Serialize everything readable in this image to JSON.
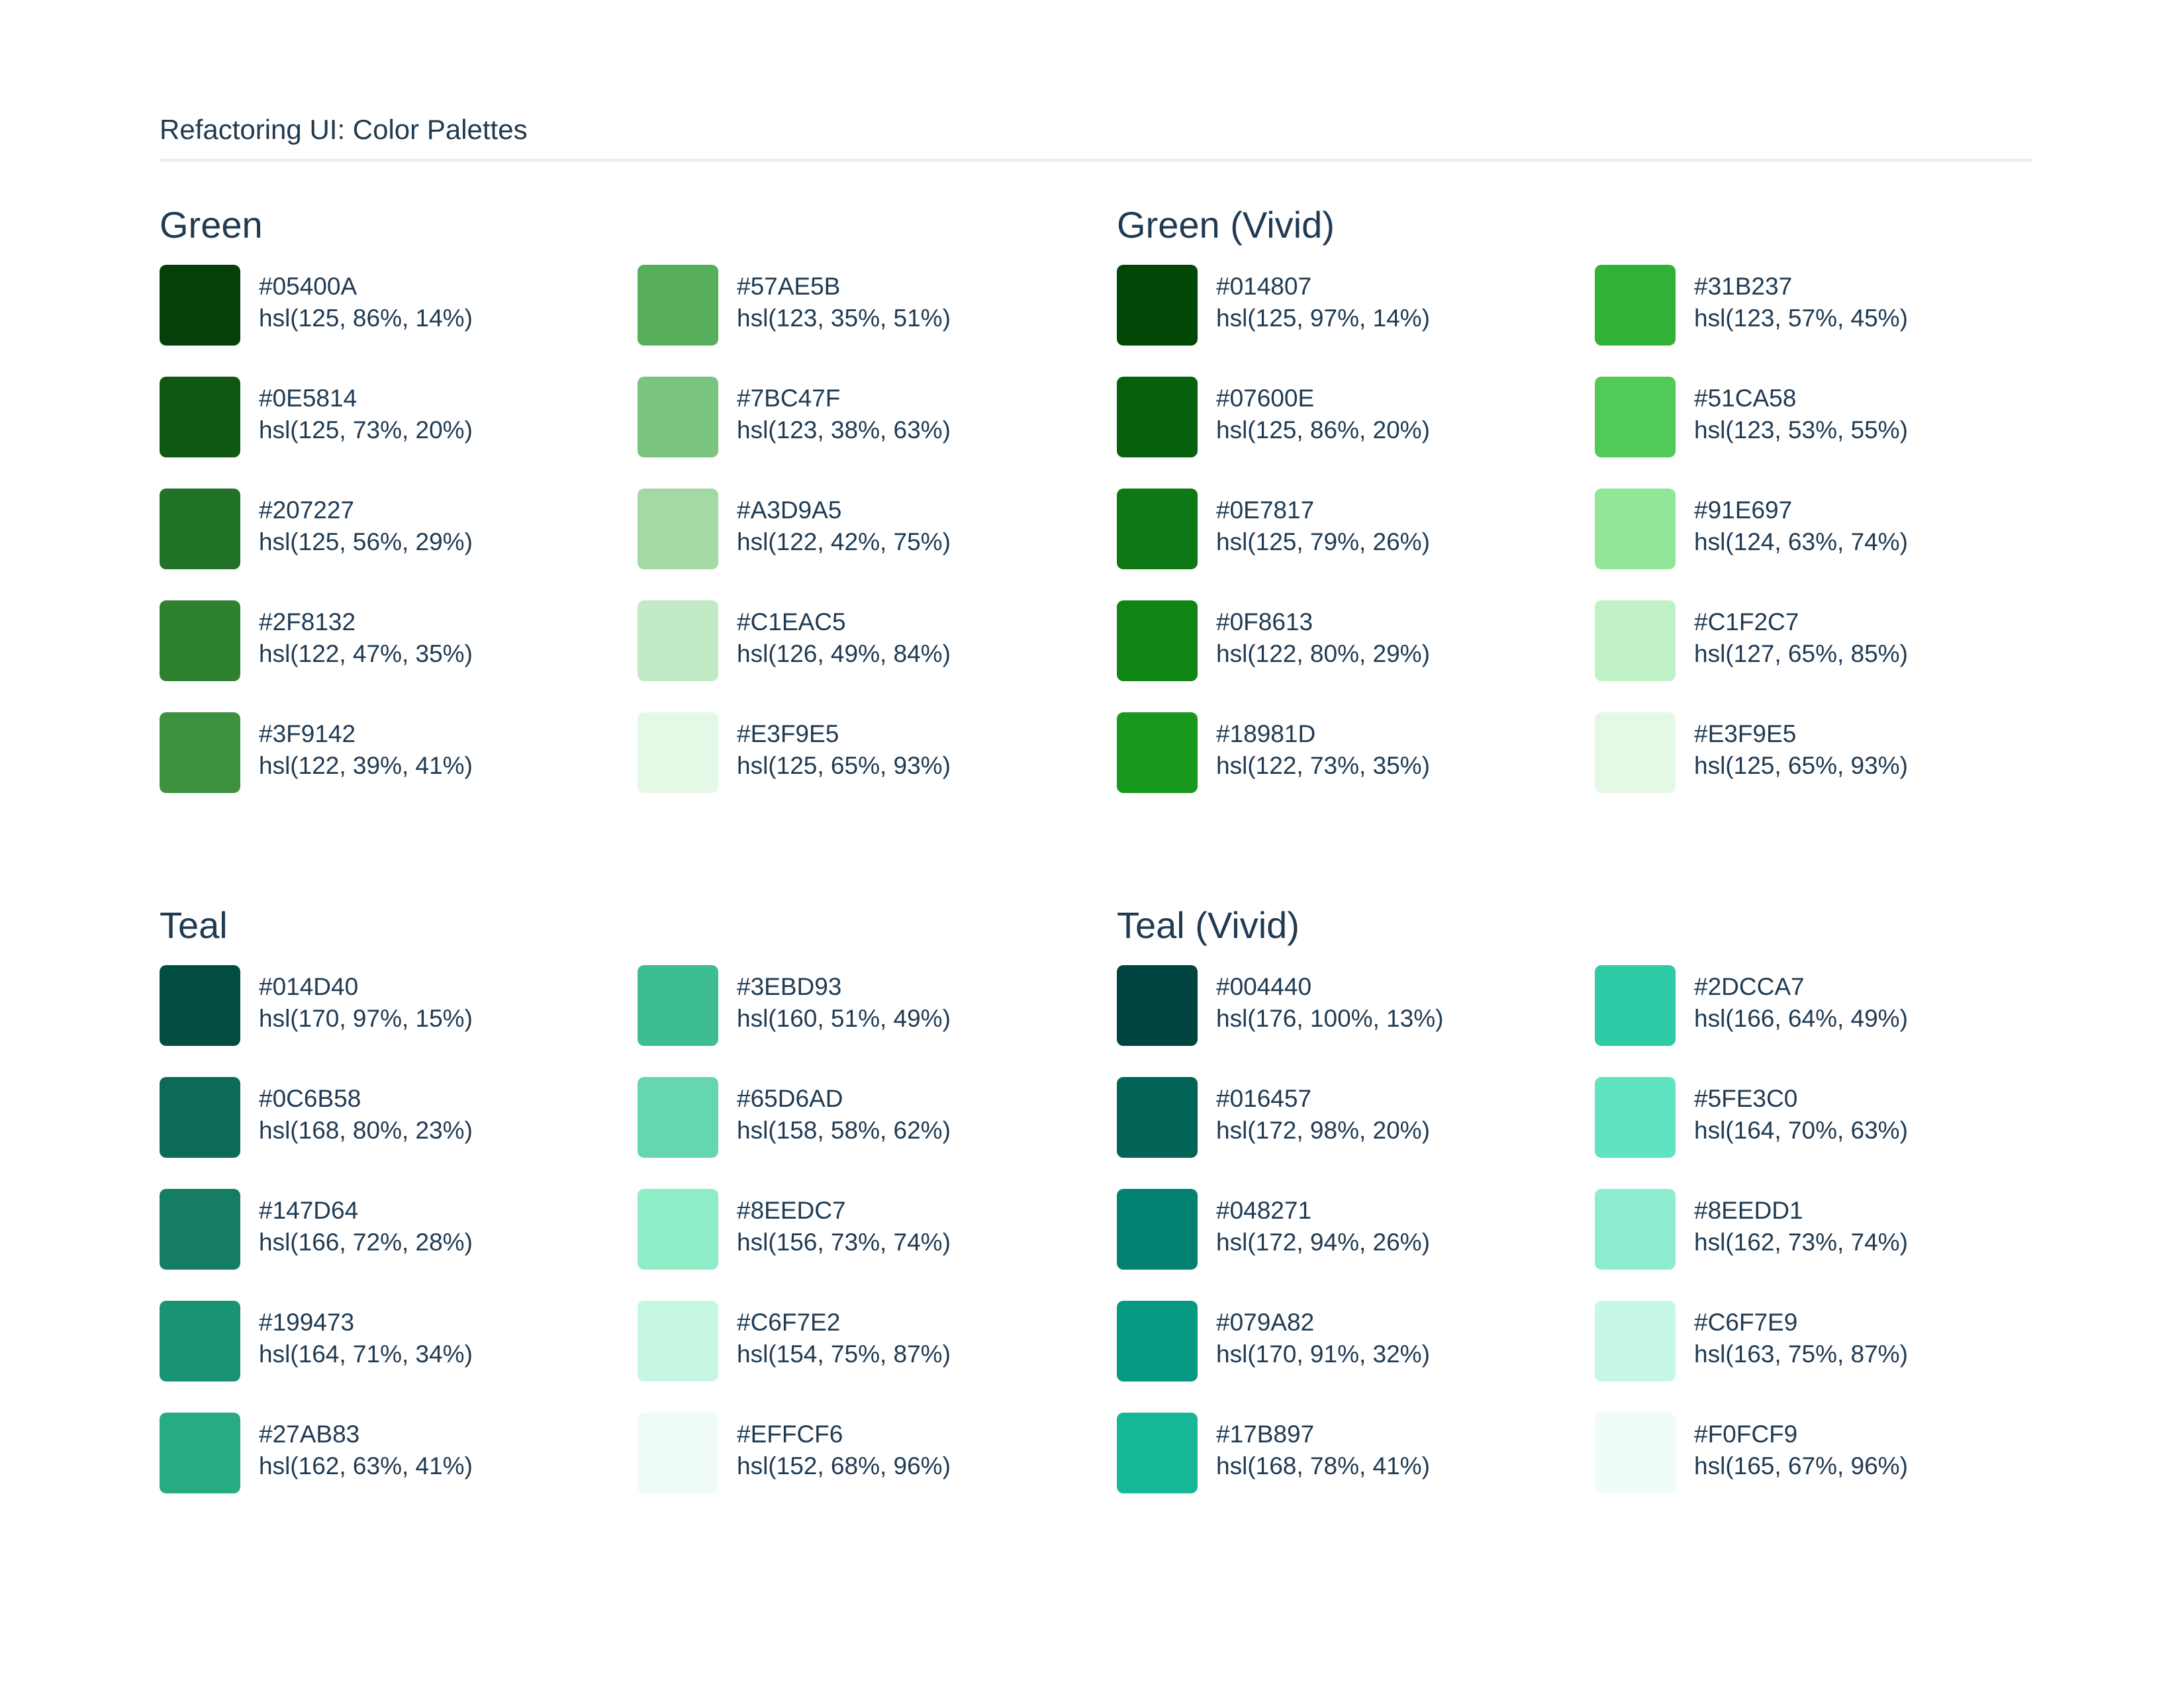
{
  "header": {
    "title": "Refactoring UI: Color Palettes"
  },
  "palettes": [
    {
      "name": "Green",
      "swatches": [
        {
          "hex": "#05400A",
          "hsl": "hsl(125, 86%, 14%)",
          "color": "#05400A"
        },
        {
          "hex": "#0E5814",
          "hsl": "hsl(125, 73%, 20%)",
          "color": "#0E5814"
        },
        {
          "hex": "#207227",
          "hsl": "hsl(125, 56%, 29%)",
          "color": "#207227"
        },
        {
          "hex": "#2F8132",
          "hsl": "hsl(122, 47%, 35%)",
          "color": "#2F8132"
        },
        {
          "hex": "#3F9142",
          "hsl": "hsl(122, 39%, 41%)",
          "color": "#3F9142"
        },
        {
          "hex": "#57AE5B",
          "hsl": "hsl(123, 35%, 51%)",
          "color": "#57AE5B"
        },
        {
          "hex": "#7BC47F",
          "hsl": "hsl(123, 38%, 63%)",
          "color": "#7BC47F"
        },
        {
          "hex": "#A3D9A5",
          "hsl": "hsl(122, 42%, 75%)",
          "color": "#A3D9A5"
        },
        {
          "hex": "#C1EAC5",
          "hsl": "hsl(126, 49%, 84%)",
          "color": "#C1EAC5"
        },
        {
          "hex": "#E3F9E5",
          "hsl": "hsl(125, 65%, 93%)",
          "color": "#E3F9E5"
        }
      ]
    },
    {
      "name": "Green (Vivid)",
      "swatches": [
        {
          "hex": "#014807",
          "hsl": "hsl(125, 97%, 14%)",
          "color": "#014807"
        },
        {
          "hex": "#07600E",
          "hsl": "hsl(125, 86%, 20%)",
          "color": "#07600E"
        },
        {
          "hex": "#0E7817",
          "hsl": "hsl(125, 79%, 26%)",
          "color": "#0E7817"
        },
        {
          "hex": "#0F8613",
          "hsl": "hsl(122, 80%, 29%)",
          "color": "#0F8613"
        },
        {
          "hex": "#18981D",
          "hsl": "hsl(122, 73%, 35%)",
          "color": "#18981D"
        },
        {
          "hex": "#31B237",
          "hsl": "hsl(123, 57%, 45%)",
          "color": "#31B237"
        },
        {
          "hex": "#51CA58",
          "hsl": "hsl(123, 53%, 55%)",
          "color": "#51CA58"
        },
        {
          "hex": "#91E697",
          "hsl": "hsl(124, 63%, 74%)",
          "color": "#91E697"
        },
        {
          "hex": "#C1F2C7",
          "hsl": "hsl(127, 65%, 85%)",
          "color": "#C1F2C7"
        },
        {
          "hex": "#E3F9E5",
          "hsl": "hsl(125, 65%, 93%)",
          "color": "#E3F9E5"
        }
      ]
    },
    {
      "name": "Teal",
      "swatches": [
        {
          "hex": "#014D40",
          "hsl": "hsl(170, 97%, 15%)",
          "color": "#014D40"
        },
        {
          "hex": "#0C6B58",
          "hsl": "hsl(168, 80%, 23%)",
          "color": "#0C6B58"
        },
        {
          "hex": "#147D64",
          "hsl": "hsl(166, 72%, 28%)",
          "color": "#147D64"
        },
        {
          "hex": "#199473",
          "hsl": "hsl(164, 71%, 34%)",
          "color": "#199473"
        },
        {
          "hex": "#27AB83",
          "hsl": "hsl(162, 63%, 41%)",
          "color": "#27AB83"
        },
        {
          "hex": "#3EBD93",
          "hsl": "hsl(160, 51%, 49%)",
          "color": "#3EBD93"
        },
        {
          "hex": "#65D6AD",
          "hsl": "hsl(158, 58%, 62%)",
          "color": "#65D6AD"
        },
        {
          "hex": "#8EEDC7",
          "hsl": "hsl(156, 73%, 74%)",
          "color": "#8EEDC7"
        },
        {
          "hex": "#C6F7E2",
          "hsl": "hsl(154, 75%, 87%)",
          "color": "#C6F7E2"
        },
        {
          "hex": "#EFFCF6",
          "hsl": "hsl(152, 68%, 96%)",
          "color": "#EFFCF6"
        }
      ]
    },
    {
      "name": "Teal (Vivid)",
      "swatches": [
        {
          "hex": "#004440",
          "hsl": "hsl(176, 100%, 13%)",
          "color": "#004440"
        },
        {
          "hex": "#016457",
          "hsl": "hsl(172, 98%, 20%)",
          "color": "#016457"
        },
        {
          "hex": "#048271",
          "hsl": "hsl(172, 94%, 26%)",
          "color": "#048271"
        },
        {
          "hex": "#079A82",
          "hsl": "hsl(170, 91%, 32%)",
          "color": "#079A82"
        },
        {
          "hex": "#17B897",
          "hsl": "hsl(168, 78%, 41%)",
          "color": "#17B897"
        },
        {
          "hex": "#2DCCA7",
          "hsl": "hsl(166, 64%, 49%)",
          "color": "#2DCCA7"
        },
        {
          "hex": "#5FE3C0",
          "hsl": "hsl(164, 70%, 63%)",
          "color": "#5FE3C0"
        },
        {
          "hex": "#8EEDD1",
          "hsl": "hsl(162, 73%, 74%)",
          "color": "#8EEDD1"
        },
        {
          "hex": "#C6F7E9",
          "hsl": "hsl(163, 75%, 87%)",
          "color": "#C6F7E9"
        },
        {
          "hex": "#F0FCF9",
          "hsl": "hsl(165, 67%, 96%)",
          "color": "#F0FCF9"
        }
      ]
    }
  ]
}
